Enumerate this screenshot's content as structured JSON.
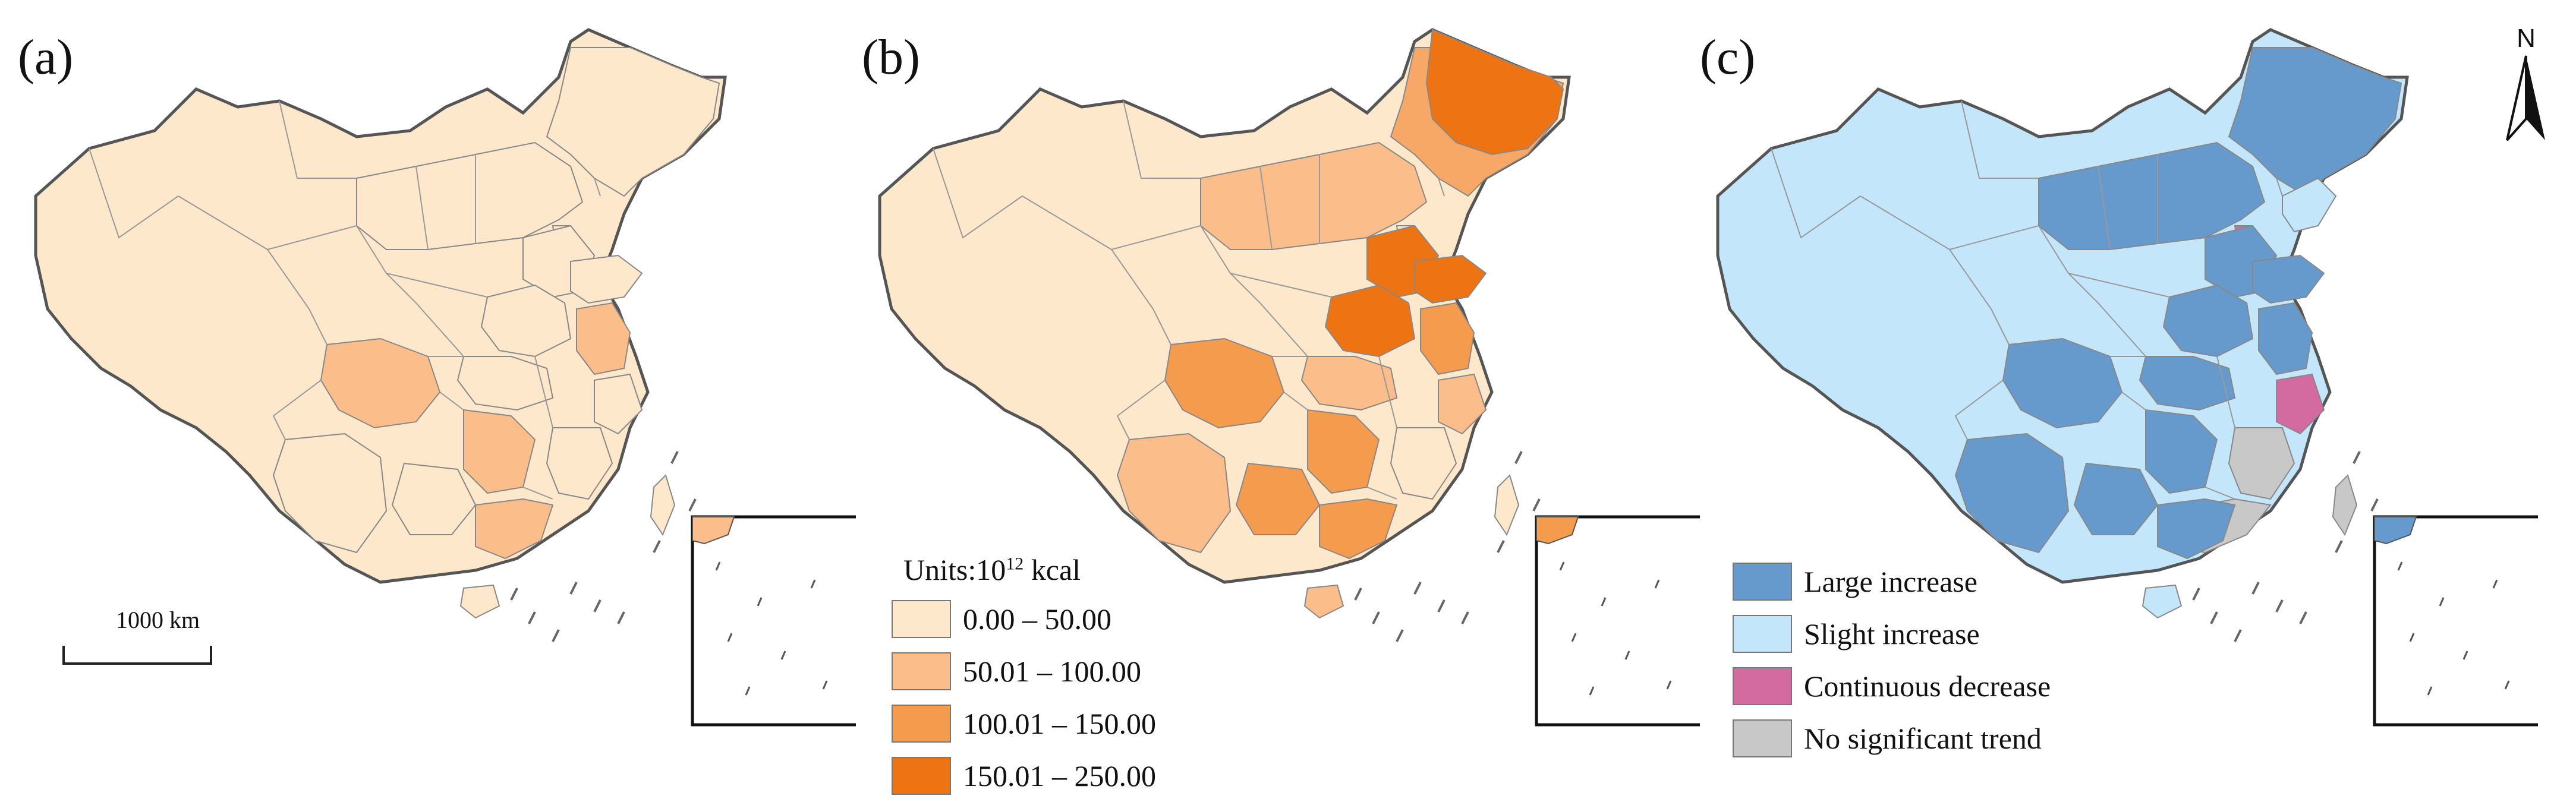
{
  "panels": [
    {
      "label": "(a)",
      "fills": {
        "land": "#fde8cc",
        "northeast": "#fde8cc",
        "sichuan": "#fbbe8a",
        "hunan": "#fbbe8a",
        "guangdong": "#fbbe8a",
        "jiangsu": "#fbbe8a",
        "henan": "#fde8cc",
        "shandong": "#fde8cc",
        "hebei": "#fde8cc",
        "guangxi": "#fde8cc",
        "hubei": "#fde8cc",
        "yunnan": "#fde8cc",
        "northchina": "#fde8cc",
        "taiwan": "#fde8cc",
        "hainan": "#fde8cc",
        "fujian": "#fde8cc",
        "zhejiang": "#fde8cc",
        "beijing": "#fde8cc",
        "inset_top": "#fbbe8a"
      }
    },
    {
      "label": "(b)",
      "fills": {
        "land": "#fde8cc",
        "northeast": "#f7a766",
        "sichuan": "#f59b4e",
        "hunan": "#f59b4e",
        "guangdong": "#f59b4e",
        "jiangsu": "#f59b4e",
        "henan": "#ee7312",
        "shandong": "#ee7312",
        "hebei": "#ee7312",
        "guangxi": "#f59b4e",
        "hubei": "#fbbe8a",
        "yunnan": "#fbbe8a",
        "northchina": "#fbbe8a",
        "taiwan": "#fde8cc",
        "hainan": "#fbbe8a",
        "fujian": "#fde8cc",
        "zhejiang": "#fbbe8a",
        "beijing": "#fde8cc",
        "inset_top": "#f59b4e",
        "heilongjiang": "#ee7312"
      }
    },
    {
      "label": "(c)",
      "fills": {
        "land": "#c3e6fb",
        "northeast": "#6699cc",
        "sichuan": "#6699cc",
        "hunan": "#6699cc",
        "guangdong": "#6699cc",
        "jiangsu": "#6699cc",
        "henan": "#6699cc",
        "shandong": "#6699cc",
        "hebei": "#6699cc",
        "guangxi": "#6699cc",
        "hubei": "#6699cc",
        "yunnan": "#6699cc",
        "northchina": "#6699cc",
        "taiwan": "#c8c8c8",
        "hainan": "#c3e6fb",
        "fujian": "#c8c8c8",
        "zhejiang": "#d36ba0",
        "beijing": "#d36ba0",
        "inset_top": "#6699cc",
        "liaoning": "#c3e6fb",
        "southcoast": "#c8c8c8"
      }
    }
  ],
  "legend_b": {
    "title_prefix": "Units:10",
    "title_exp": "12",
    "title_suffix": " kcal",
    "items": [
      {
        "label": "0.00 – 50.00",
        "color": "#fde8cc"
      },
      {
        "label": "50.01 – 100.00",
        "color": "#fbbe8a"
      },
      {
        "label": "100.01 – 150.00",
        "color": "#f59b4e"
      },
      {
        "label": "150.01 – 250.00",
        "color": "#ee7312"
      }
    ]
  },
  "legend_c": {
    "items": [
      {
        "label": "Large increase",
        "color": "#6699cc"
      },
      {
        "label": "Slight increase",
        "color": "#c3e6fb"
      },
      {
        "label": "Continuous decrease",
        "color": "#d36ba0"
      },
      {
        "label": "No significant trend",
        "color": "#c8c8c8"
      }
    ]
  },
  "scale_bar": {
    "label": "1000 km"
  },
  "north_arrow": {
    "label": "N"
  }
}
